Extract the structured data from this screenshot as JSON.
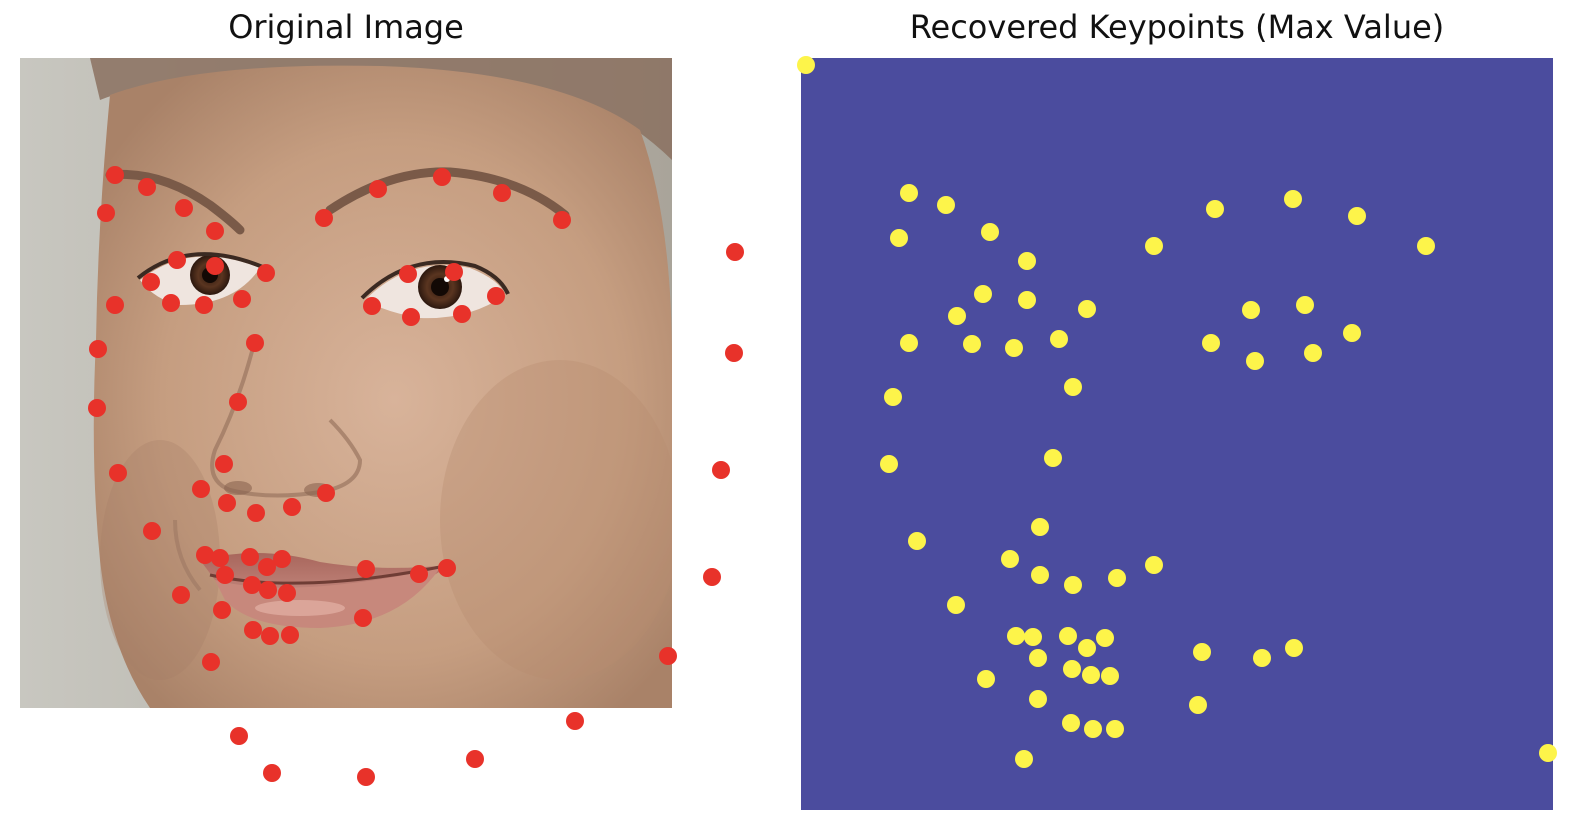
{
  "panels": {
    "left": {
      "title": "Original Image",
      "content": "face photo with red landmark points"
    },
    "right": {
      "title": "Recovered Keypoints (Max Value)",
      "content": "keypoint heatmap with yellow dots on purple background"
    }
  },
  "colors": {
    "landmark": "#e8322a",
    "keypoint": "#fdf44a",
    "heatmap_background": "#4b4c9e",
    "skin": "#c9a285",
    "backdrop": "#b9b6ad"
  }
}
